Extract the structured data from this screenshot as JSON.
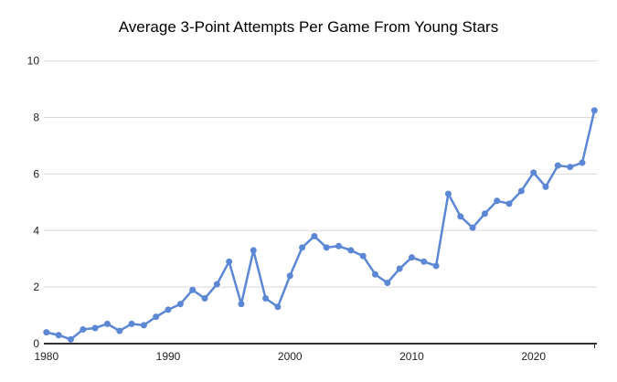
{
  "chart_data": {
    "type": "line",
    "title": "Average 3-Point Attempts Per Game From Young Stars",
    "xlabel": "",
    "ylabel": "",
    "x": [
      1980,
      1981,
      1982,
      1983,
      1984,
      1985,
      1986,
      1987,
      1988,
      1989,
      1990,
      1991,
      1992,
      1993,
      1994,
      1995,
      1996,
      1997,
      1998,
      1999,
      2000,
      2001,
      2002,
      2003,
      2004,
      2005,
      2006,
      2007,
      2008,
      2009,
      2010,
      2011,
      2012,
      2013,
      2014,
      2015,
      2016,
      2017,
      2018,
      2019,
      2020,
      2021,
      2022,
      2023,
      2024,
      2025
    ],
    "series": [
      {
        "name": "Average 3-Point Attempts Per Game",
        "values": [
          0.4,
          0.3,
          0.15,
          0.5,
          0.55,
          0.7,
          0.45,
          0.7,
          0.65,
          0.95,
          1.2,
          1.4,
          1.9,
          1.6,
          2.1,
          2.9,
          1.4,
          3.3,
          1.6,
          1.3,
          2.4,
          3.4,
          3.8,
          3.4,
          3.45,
          3.3,
          3.1,
          2.45,
          2.15,
          2.65,
          3.05,
          2.9,
          2.75,
          5.3,
          4.5,
          4.1,
          4.6,
          5.05,
          4.95,
          5.4,
          6.05,
          5.55,
          6.3,
          6.25,
          6.4,
          8.25
        ]
      }
    ],
    "ylim": [
      0,
      10
    ],
    "yticks": [
      0,
      2,
      4,
      6,
      8,
      10
    ],
    "xticks": [
      1980,
      1990,
      2000,
      2010,
      2020
    ],
    "grid": true,
    "legend": false,
    "line_color": "#5b87d5",
    "point_radius": 3.5,
    "line_width": 2.5,
    "axis_color": "#333333",
    "grid_color": "#d9d9d9",
    "tick_label_color": "#222222",
    "title_color": "#000000",
    "background_color": "#ffffff"
  }
}
